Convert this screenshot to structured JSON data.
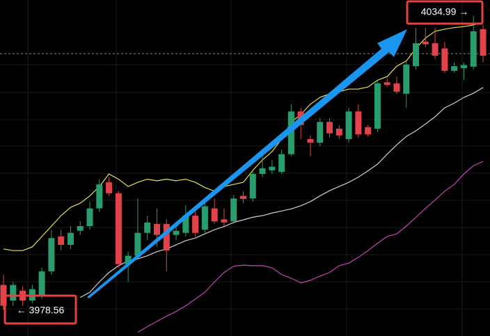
{
  "chart_data": {
    "type": "candlestick",
    "categories": [
      null,
      null,
      null,
      null,
      null,
      null,
      null,
      null,
      null,
      null,
      null,
      null,
      null,
      null,
      null,
      null,
      null,
      null,
      null,
      null,
      null,
      null,
      null,
      null,
      null,
      null,
      null,
      null,
      null,
      null,
      null,
      null,
      null,
      null,
      null,
      null,
      null,
      null,
      null,
      null,
      null,
      null,
      null,
      null,
      null,
      null,
      null,
      null,
      null,
      null,
      null
    ],
    "open": [
      3983.3,
      3980.3,
      3982.2,
      3980.3,
      3981.3,
      3985.9,
      3992.6,
      3991.0,
      3993.7,
      3994.6,
      3998.0,
      4003.0,
      4000.9,
      3987.3,
      3988.9,
      3993.3,
      3995.0,
      3995.0,
      3992.9,
      3993.3,
      3996.6,
      3993.9,
      3998.0,
      3995.9,
      3995.5,
      4000.4,
      3999.9,
      4004.6,
      4005.3,
      4005.0,
      4008.4,
      4016.6,
      4011.3,
      4010.6,
      4014.6,
      4013.3,
      4011.3,
      4016.6,
      4013.6,
      4013.3,
      4022.2,
      4022.0,
      4020.0,
      4025.3,
      4030.0,
      4029.7,
      4028.7,
      4024.4,
      4024.9,
      4025.2,
      4032.4
    ],
    "high": [
      3985.3,
      3983.9,
      3983.0,
      3983.3,
      3986.6,
      3993.9,
      3993.9,
      3994.6,
      3995.5,
      3999.3,
      4003.6,
      4004.0,
      4001.3,
      3989.7,
      3999.9,
      3996.6,
      3998.0,
      3995.9,
      3994.6,
      3998.6,
      3998.0,
      3999.3,
      3999.9,
      3998.0,
      4000.6,
      4001.3,
      4005.3,
      4009.3,
      4007.3,
      4009.3,
      4018.0,
      4017.3,
      4012.0,
      4015.3,
      4015.3,
      4014.0,
      4017.3,
      4018.0,
      4014.0,
      4022.6,
      4023.0,
      4023.3,
      4026.3,
      4032.7,
      4032.7,
      4032.7,
      4030.0,
      4026.0,
      4026.0,
      4034.99,
      4033.3
    ],
    "low": [
      3978.56,
      3979.3,
      3979.3,
      3979.8,
      3980.6,
      3985.3,
      3989.9,
      3990.2,
      3992.9,
      3993.9,
      3997.3,
      4000.4,
      3986.6,
      3983.9,
      3988.3,
      3991.9,
      3990.6,
      3985.9,
      3991.9,
      3992.6,
      3992.6,
      3993.3,
      3995.0,
      3994.6,
      3995.0,
      3999.0,
      3999.3,
      4004.0,
      4004.6,
      4004.6,
      4008.0,
      4011.3,
      4008.0,
      4010.0,
      4011.6,
      4011.3,
      4010.6,
      4011.6,
      4011.8,
      4012.6,
      4021.3,
      4020.0,
      4017.3,
      4024.6,
      4028.9,
      4026.7,
      4024.0,
      4024.0,
      4022.6,
      4024.6,
      4026.0
    ],
    "close": [
      3979.3,
      3983.3,
      3980.3,
      3982.5,
      3985.9,
      3992.3,
      3991.0,
      3993.3,
      3994.6,
      3998.0,
      4002.6,
      4000.9,
      3987.3,
      3988.9,
      3993.3,
      3995.3,
      3992.9,
      3989.9,
      3993.7,
      3996.6,
      3993.3,
      3998.4,
      3995.5,
      3995.3,
      3999.9,
      3999.8,
      4004.6,
      4005.7,
      4006.0,
      4008.4,
      4016.6,
      4014.0,
      4010.6,
      4014.6,
      4012.4,
      4012.0,
      4016.6,
      4012.2,
      4012.2,
      4022.0,
      4021.7,
      4020.4,
      4025.6,
      4029.7,
      4029.5,
      4027.3,
      4024.4,
      4025.3,
      4025.5,
      4032.0,
      4027.3
    ],
    "up_color": "#2a9d6f",
    "down_color": "#e0444a",
    "series": [
      {
        "color": "#e8e34f",
        "values": [
          3990.2,
          3989.9,
          3989.9,
          3990.6,
          3992.6,
          3994.6,
          3996.6,
          3998.2,
          3999.0,
          4000.4,
          4002.2,
          4004.6,
          4003.6,
          4002.2,
          4003.0,
          4003.6,
          4003.3,
          4003.6,
          4003.3,
          4003.6,
          4003.0,
          4002.0,
          4001.3,
          4002.2,
          4002.6,
          4003.0,
          4005.3,
          4007.3,
          4008.9,
          4011.3,
          4014.6,
          4016.0,
          4018.0,
          4019.3,
          4020.0,
          4020.4,
          4020.9,
          4020.9,
          4021.3,
          4022.6,
          4023.3,
          4025.3,
          4026.3,
          4028.7,
          4030.7,
          4032.0,
          4032.4,
          4032.7,
          4032.9,
          4033.2,
          4033.7
        ]
      },
      {
        "color": "#cfcfcf",
        "values": [
          null,
          null,
          null,
          null,
          null,
          null,
          null,
          null,
          3980.9,
          3981.9,
          3983.9,
          3985.7,
          3987.0,
          3987.9,
          3988.3,
          3988.9,
          3989.7,
          3990.2,
          3991.0,
          3991.8,
          3992.3,
          3993.1,
          3993.9,
          3994.5,
          3995.3,
          3995.8,
          3996.3,
          3996.6,
          3997.1,
          3997.5,
          3997.9,
          3998.5,
          3999.3,
          4000.4,
          4001.4,
          4002.2,
          4003.0,
          4004.0,
          4005.2,
          4006.5,
          4008.4,
          4010.2,
          4011.8,
          4012.9,
          4014.2,
          4015.6,
          4017.3,
          4018.2,
          4019.3,
          4020.1,
          4021.2
        ]
      },
      {
        "color": "#c644b4",
        "values": [
          null,
          null,
          null,
          null,
          null,
          null,
          null,
          null,
          null,
          null,
          null,
          null,
          null,
          null,
          3974.2,
          3975.3,
          3976.3,
          3977.3,
          3978.2,
          3979.3,
          3980.6,
          3981.9,
          3983.9,
          3985.7,
          3986.9,
          3987.1,
          3987.0,
          3987.0,
          3986.6,
          3985.3,
          3984.6,
          3983.7,
          3984.2,
          3985.0,
          3985.7,
          3987.0,
          3987.5,
          3988.6,
          3989.9,
          3991.3,
          3992.6,
          3993.1,
          3994.6,
          3996.3,
          3998.0,
          3999.6,
          4001.3,
          4002.6,
          4004.6,
          4006.2,
          4007.0
        ]
      }
    ],
    "ylim": [
      3973.5,
      4038
    ],
    "price_line": 4027.7,
    "max_label": "4034.99 →",
    "min_label": "← 3978.56"
  }
}
